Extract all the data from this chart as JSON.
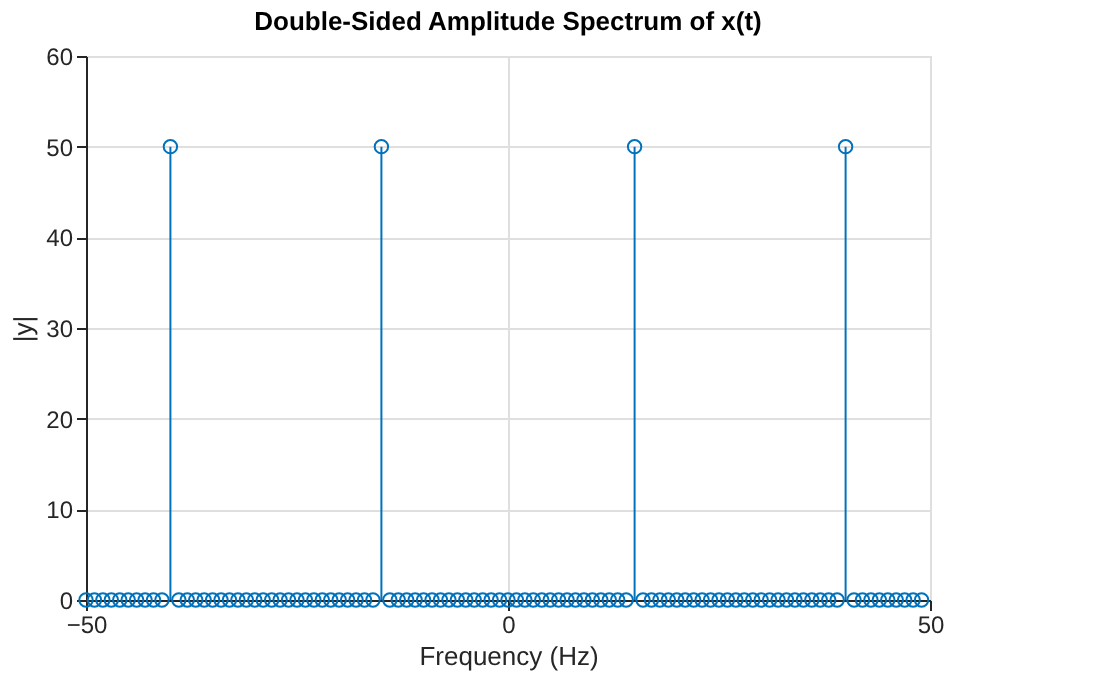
{
  "chart_data": {
    "type": "lollipop",
    "title": "Double-Sided Amplitude Spectrum of x(t)",
    "xlabel": "Frequency (Hz)",
    "ylabel": "|y|",
    "x": [
      -50,
      -49,
      -48,
      -47,
      -46,
      -45,
      -44,
      -43,
      -42,
      -41,
      -40,
      -39,
      -38,
      -37,
      -36,
      -35,
      -34,
      -33,
      -32,
      -31,
      -30,
      -29,
      -28,
      -27,
      -26,
      -25,
      -24,
      -23,
      -22,
      -21,
      -20,
      -19,
      -18,
      -17,
      -16,
      -15,
      -14,
      -13,
      -12,
      -11,
      -10,
      -9,
      -8,
      -7,
      -6,
      -5,
      -4,
      -3,
      -2,
      -1,
      0,
      1,
      2,
      3,
      4,
      5,
      6,
      7,
      8,
      9,
      10,
      11,
      12,
      13,
      14,
      15,
      16,
      17,
      18,
      19,
      20,
      21,
      22,
      23,
      24,
      25,
      26,
      27,
      28,
      29,
      30,
      31,
      32,
      33,
      34,
      35,
      36,
      37,
      38,
      39,
      40,
      41,
      42,
      43,
      44,
      45,
      46,
      47,
      48,
      49
    ],
    "series": [
      {
        "color": "#0072bd",
        "values": [
          0,
          0,
          0,
          0,
          0,
          0,
          0,
          0,
          0,
          0,
          50,
          0,
          0,
          0,
          0,
          0,
          0,
          0,
          0,
          0,
          0,
          0,
          0,
          0,
          0,
          0,
          0,
          0,
          0,
          0,
          0,
          0,
          0,
          0,
          0,
          50,
          0,
          0,
          0,
          0,
          0,
          0,
          0,
          0,
          0,
          0,
          0,
          0,
          0,
          0,
          0,
          0,
          0,
          0,
          0,
          0,
          0,
          0,
          0,
          0,
          0,
          0,
          0,
          0,
          0,
          50,
          0,
          0,
          0,
          0,
          0,
          0,
          0,
          0,
          0,
          0,
          0,
          0,
          0,
          0,
          0,
          0,
          0,
          0,
          0,
          0,
          0,
          0,
          0,
          0,
          50,
          0,
          0,
          0,
          0,
          0,
          0,
          0,
          0,
          0
        ]
      }
    ],
    "xlim": [
      -50,
      50
    ],
    "xticks": [
      -50,
      0,
      50
    ],
    "ylim": [
      0,
      60
    ],
    "yticks": [
      0,
      10,
      20,
      30,
      40,
      50,
      60
    ],
    "grid": true,
    "marker": "circle"
  }
}
